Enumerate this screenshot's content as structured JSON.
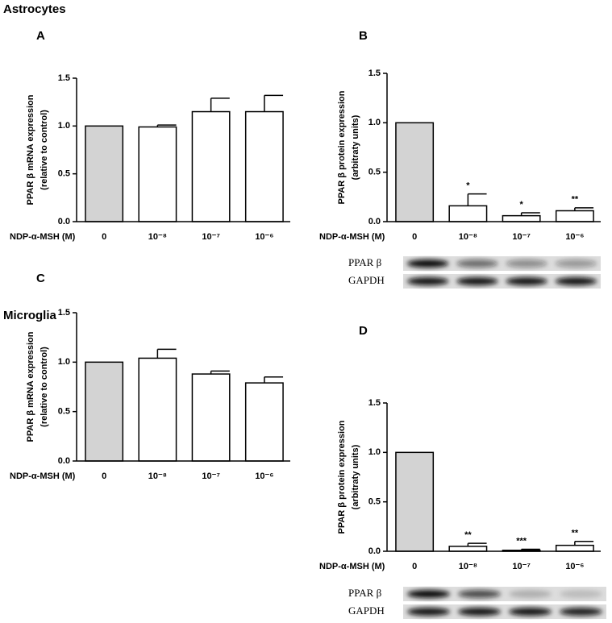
{
  "sections": [
    "Astrocytes",
    "Microglia"
  ],
  "chart_data": [
    {
      "type": "bar",
      "panel": "A",
      "ylabel": [
        "PPAR β mRNA expression",
        "(relative to control)"
      ],
      "xlabel": "NDP-α-MSH (M)",
      "categories": [
        "0",
        "10⁻⁸",
        "10⁻⁷",
        "10⁻⁶"
      ],
      "values": [
        1.0,
        0.99,
        1.15,
        1.15
      ],
      "errors": [
        null,
        0.02,
        0.14,
        0.17
      ],
      "colors": [
        "#d3d3d3",
        "#ffffff",
        "#ffffff",
        "#ffffff"
      ],
      "ylim": [
        0,
        1.5
      ],
      "yticks": [
        {
          "value": 0,
          "label": "0.0"
        },
        {
          "value": 0.5,
          "label": "0.5"
        },
        {
          "value": 1,
          "label": "1.0"
        },
        {
          "value": 1.5,
          "label": "1.5"
        }
      ]
    },
    {
      "type": "bar",
      "panel": "B",
      "ylabel": [
        "PPAR β protein expression",
        "(arbitraty units)"
      ],
      "xlabel": "NDP-α-MSH (M)",
      "categories": [
        "0",
        "10⁻⁸",
        "10⁻⁷",
        "10⁻⁶"
      ],
      "values": [
        1.0,
        0.16,
        0.06,
        0.11
      ],
      "errors": [
        null,
        0.12,
        0.03,
        0.03
      ],
      "value_labels": [
        null,
        "*",
        "*",
        "**"
      ],
      "colors": [
        "#d3d3d3",
        "#ffffff",
        "#ffffff",
        "#ffffff"
      ],
      "ylim": [
        0,
        1.5
      ],
      "yticks": [
        {
          "value": 0,
          "label": "0.0"
        },
        {
          "value": 0.5,
          "label": "0.5"
        },
        {
          "value": 1,
          "label": "1.0"
        },
        {
          "value": 1.5,
          "label": "1.5"
        }
      ],
      "blot_labels": [
        "PPAR β",
        "GAPDH"
      ]
    },
    {
      "type": "bar",
      "panel": "C",
      "ylabel": [
        "PPAR β mRNA expression",
        "(relative to control)"
      ],
      "xlabel": "NDP-α-MSH (M)",
      "categories": [
        "0",
        "10⁻⁸",
        "10⁻⁷",
        "10⁻⁶"
      ],
      "values": [
        1.0,
        1.04,
        0.88,
        0.79
      ],
      "errors": [
        null,
        0.09,
        0.03,
        0.06
      ],
      "colors": [
        "#d3d3d3",
        "#ffffff",
        "#ffffff",
        "#ffffff"
      ],
      "ylim": [
        0,
        1.5
      ],
      "yticks": [
        {
          "value": 0,
          "label": "0.0"
        },
        {
          "value": 0.5,
          "label": "0.5"
        },
        {
          "value": 1,
          "label": "1.0"
        },
        {
          "value": 1.5,
          "label": "1.5"
        }
      ]
    },
    {
      "type": "bar",
      "panel": "D",
      "ylabel": [
        "PPAR β protein expression",
        "(arbitraty units)"
      ],
      "xlabel": "NDP-α-MSH (M)",
      "categories": [
        "0",
        "10⁻⁸",
        "10⁻⁷",
        "10⁻⁶"
      ],
      "values": [
        1.0,
        0.05,
        0.01,
        0.06
      ],
      "errors": [
        null,
        0.03,
        0.01,
        0.04
      ],
      "value_labels": [
        null,
        "**",
        "***",
        "**"
      ],
      "colors": [
        "#d3d3d3",
        "#ffffff",
        "#ffffff",
        "#ffffff"
      ],
      "ylim": [
        0,
        1.5
      ],
      "yticks": [
        {
          "value": 0,
          "label": "0.0"
        },
        {
          "value": 0.5,
          "label": "0.5"
        },
        {
          "value": 1,
          "label": "1.0"
        },
        {
          "value": 1.5,
          "label": "1.5"
        }
      ],
      "blot_labels": [
        "PPAR β",
        "GAPDH"
      ]
    }
  ]
}
